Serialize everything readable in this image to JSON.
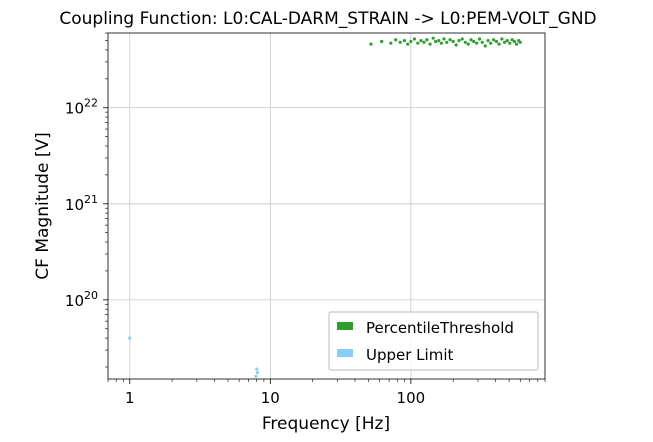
{
  "chart_data": {
    "type": "scatter",
    "title": "Coupling Function: L0:CAL-DARM_STRAIN -> L0:PEM-VOLT_GND",
    "xlabel": "Frequency [Hz]",
    "ylabel": "CF Magnitude [V]",
    "xscale": "log",
    "yscale": "log",
    "xlim": [
      0.7,
      900
    ],
    "ylim": [
      1.5e+19,
      6e+22
    ],
    "grid": true,
    "legend_position": "lower-right",
    "x_ticks": [
      {
        "value": 1,
        "label": "1"
      },
      {
        "value": 10,
        "label": "10"
      },
      {
        "value": 100,
        "label": "100"
      }
    ],
    "y_ticks": [
      {
        "value": 1e+20,
        "base": "10",
        "exp": "20"
      },
      {
        "value": 1e+21,
        "base": "10",
        "exp": "21"
      },
      {
        "value": 1e+22,
        "base": "10",
        "exp": "22"
      }
    ],
    "series": [
      {
        "name": "PercentileThreshold",
        "color": "#2ca02c",
        "points": [
          [
            52,
            4.6e+22
          ],
          [
            62,
            4.9e+22
          ],
          [
            72,
            4.7e+22
          ],
          [
            78,
            5.1e+22
          ],
          [
            84,
            4.8e+22
          ],
          [
            90,
            5e+22
          ],
          [
            95,
            4.6e+22
          ],
          [
            100,
            4.9e+22
          ],
          [
            106,
            5.2e+22
          ],
          [
            112,
            4.7e+22
          ],
          [
            118,
            5e+22
          ],
          [
            124,
            4.8e+22
          ],
          [
            130,
            5.1e+22
          ],
          [
            137,
            4.6e+22
          ],
          [
            144,
            5.3e+22
          ],
          [
            150,
            4.9e+22
          ],
          [
            158,
            5e+22
          ],
          [
            165,
            4.7e+22
          ],
          [
            172,
            5.2e+22
          ],
          [
            180,
            4.8e+22
          ],
          [
            190,
            5.1e+22
          ],
          [
            200,
            4.9e+22
          ],
          [
            210,
            4.5e+22
          ],
          [
            220,
            5e+22
          ],
          [
            232,
            5.2e+22
          ],
          [
            244,
            4.8e+22
          ],
          [
            256,
            4.6e+22
          ],
          [
            268,
            5.1e+22
          ],
          [
            280,
            4.9e+22
          ],
          [
            294,
            4.7e+22
          ],
          [
            308,
            5.2e+22
          ],
          [
            322,
            4.8e+22
          ],
          [
            338,
            4.4e+22
          ],
          [
            354,
            5e+22
          ],
          [
            370,
            4.7e+22
          ],
          [
            388,
            5.1e+22
          ],
          [
            406,
            4.9e+22
          ],
          [
            424,
            4.6e+22
          ],
          [
            444,
            5.2e+22
          ],
          [
            464,
            4.8e+22
          ],
          [
            485,
            5e+22
          ],
          [
            505,
            4.7e+22
          ],
          [
            525,
            5.1e+22
          ],
          [
            545,
            4.9e+22
          ],
          [
            565,
            4.6e+22
          ],
          [
            585,
            5e+22
          ],
          [
            600,
            4.8e+22
          ]
        ]
      },
      {
        "name": "Upper Limit",
        "color": "#87cefa",
        "points": [
          [
            1.0,
            4e+19
          ],
          [
            8.0,
            1.9e+19
          ],
          [
            8.1,
            1.75e+19
          ],
          [
            7.9,
            1.6e+19
          ]
        ]
      }
    ]
  }
}
